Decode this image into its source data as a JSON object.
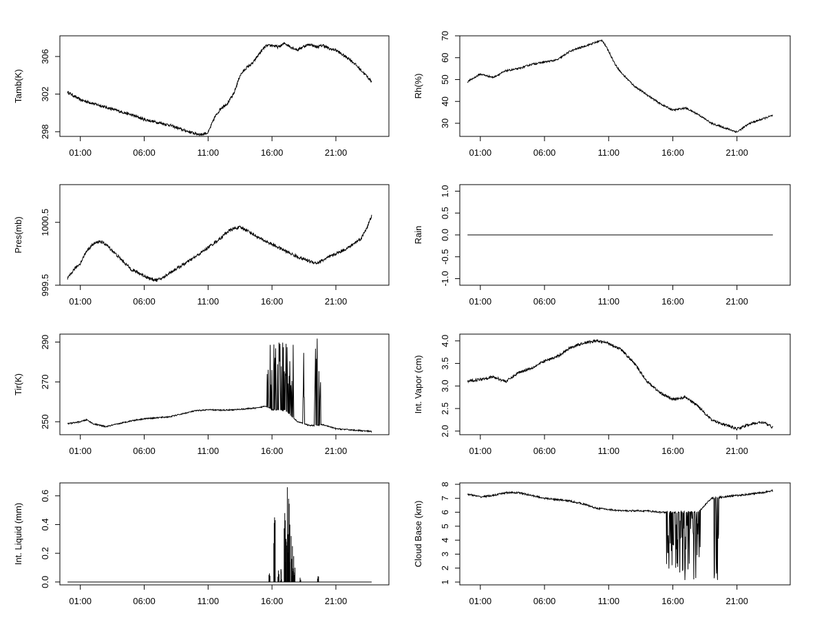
{
  "x_ticks": [
    "01:00",
    "06:00",
    "11:00",
    "16:00",
    "21:00"
  ],
  "chart_data": [
    {
      "type": "line",
      "ylabel": "Tamb(K)",
      "yticks": [
        "298",
        "302",
        "306"
      ],
      "ylim": [
        297.5,
        308.2
      ],
      "x": [
        0,
        1,
        2,
        3,
        4,
        5,
        6,
        7,
        8,
        9,
        9.5,
        10,
        10.5,
        11,
        11.5,
        12,
        12.5,
        13,
        13.5,
        14,
        14.5,
        15,
        15.5,
        16,
        16.5,
        17,
        17.5,
        18,
        18.5,
        19,
        19.5,
        20,
        20.5,
        21,
        21.5,
        22,
        22.5,
        23,
        23.5,
        24
      ],
      "values": [
        302.2,
        301.4,
        301.0,
        300.6,
        300.2,
        299.8,
        299.3,
        299.0,
        298.7,
        298.2,
        298.0,
        297.8,
        297.7,
        297.9,
        299.5,
        300.5,
        301.0,
        302.0,
        304.0,
        304.8,
        305.3,
        306.3,
        307.1,
        307.2,
        307.0,
        307.4,
        307.0,
        306.7,
        307.1,
        307.3,
        307.0,
        307.2,
        306.8,
        306.7,
        306.2,
        305.8,
        305.2,
        304.5,
        303.8,
        303.0
      ],
      "noise": 0.15,
      "spikes": false
    },
    {
      "type": "line",
      "ylabel": "Rh(%)",
      "yticks": [
        "30",
        "40",
        "50",
        "60",
        "70"
      ],
      "ylim": [
        24,
        70
      ],
      "x": [
        0,
        1,
        2,
        3,
        4,
        5,
        6,
        7,
        8,
        9,
        10,
        10.5,
        11,
        11.5,
        12,
        13,
        14,
        15,
        16,
        17,
        18,
        19,
        20,
        20.5,
        21,
        22,
        23,
        24
      ],
      "values": [
        49,
        52.5,
        51,
        54,
        55,
        57,
        58,
        59,
        63,
        65,
        67,
        68,
        63,
        57,
        53,
        47,
        43,
        39,
        36,
        37,
        34,
        30,
        28,
        27,
        26,
        30,
        32,
        34
      ],
      "noise": 0.4,
      "spikes": false
    },
    {
      "type": "line",
      "ylabel": "Pres(mb)",
      "yticks": [
        "999.5",
        "1000.5"
      ],
      "ylim": [
        999.5,
        1001.1
      ],
      "x": [
        0,
        0.5,
        1,
        1.5,
        2,
        2.5,
        3,
        4,
        5,
        6,
        6.5,
        7,
        7.5,
        8,
        9,
        10,
        11,
        12,
        12.5,
        13,
        13.5,
        14,
        15,
        16,
        17,
        18,
        19,
        19.5,
        20,
        21,
        22,
        23,
        23.5,
        24
      ],
      "values": [
        999.6,
        999.75,
        999.85,
        1000.05,
        1000.15,
        1000.2,
        1000.15,
        999.95,
        999.75,
        999.65,
        999.6,
        999.58,
        999.62,
        999.7,
        999.82,
        999.95,
        1000.1,
        1000.25,
        1000.35,
        1000.4,
        1000.42,
        1000.38,
        1000.25,
        1000.15,
        1000.05,
        999.95,
        999.88,
        999.85,
        999.9,
        1000.0,
        1000.1,
        1000.25,
        1000.45,
        1000.7
      ],
      "noise": 0.025,
      "spikes": false
    },
    {
      "type": "line",
      "ylabel": "Rain",
      "yticks": [
        "-1.0",
        "-0.5",
        "0.0",
        "0.5",
        "1.0"
      ],
      "ylim": [
        -1.15,
        1.15
      ],
      "x": [
        0,
        24
      ],
      "values": [
        0,
        0
      ],
      "noise": 0,
      "spikes": false
    },
    {
      "type": "line",
      "ylabel": "Tir(K)",
      "yticks": [
        "250",
        "270",
        "290"
      ],
      "ylim": [
        243.5,
        294
      ],
      "x": [
        0,
        1,
        1.5,
        2,
        3,
        4,
        5,
        6,
        7,
        8,
        9,
        10,
        11,
        12,
        13,
        14,
        15,
        15.5,
        16,
        17,
        18,
        19,
        20,
        21,
        22,
        23,
        24
      ],
      "values": [
        249,
        250,
        251,
        249,
        247.5,
        249,
        250.5,
        251.5,
        252,
        252.5,
        254,
        255.5,
        256,
        255.8,
        256,
        256.5,
        257,
        258,
        256,
        256,
        250,
        248,
        248.5,
        246.5,
        246,
        245.5,
        245
      ],
      "noise": 0.3,
      "spikes": true
    },
    {
      "type": "line",
      "ylabel": "Int. Vapor (cm)",
      "yticks": [
        "2.0",
        "2.5",
        "3.0",
        "3.5",
        "4.0"
      ],
      "ylim": [
        1.92,
        4.15
      ],
      "x": [
        0,
        1,
        2,
        3,
        4,
        5,
        6,
        7,
        8,
        9,
        10,
        11,
        12,
        13,
        14,
        15,
        16,
        17,
        18,
        19,
        20,
        21,
        22,
        23,
        24
      ],
      "values": [
        3.1,
        3.15,
        3.2,
        3.1,
        3.3,
        3.4,
        3.55,
        3.65,
        3.85,
        3.95,
        4.0,
        3.95,
        3.8,
        3.5,
        3.1,
        2.85,
        2.7,
        2.75,
        2.55,
        2.25,
        2.15,
        2.05,
        2.15,
        2.2,
        2.05
      ],
      "noise": 0.03,
      "spikes": false
    },
    {
      "type": "bar",
      "ylabel": "Int. Liquid (mm)",
      "yticks": [
        "0.0",
        "0.2",
        "0.4",
        "0.6"
      ],
      "ylim": [
        -0.02,
        0.69
      ],
      "x": [
        0,
        24
      ],
      "values": [
        0,
        0
      ],
      "spikes_x": [
        15.8,
        16.2,
        16.5,
        16.7,
        17.0,
        17.1,
        17.2,
        17.3,
        17.4,
        17.5,
        17.6,
        17.7,
        17.8,
        18.2,
        19.6
      ],
      "spikes_y": [
        0.06,
        0.45,
        0.08,
        0.09,
        0.48,
        0.3,
        0.66,
        0.58,
        0.4,
        0.32,
        0.25,
        0.18,
        0.1,
        0.03,
        0.04
      ]
    },
    {
      "type": "line",
      "ylabel": "Cloud Base (km)",
      "yticks": [
        "1",
        "2",
        "3",
        "4",
        "5",
        "6",
        "7",
        "8"
      ],
      "ylim": [
        0.8,
        8.1
      ],
      "x": [
        0,
        1,
        2,
        3,
        4,
        5,
        6,
        7,
        8,
        9,
        10,
        11,
        12,
        13,
        14,
        15,
        16,
        17,
        18,
        19,
        20,
        21,
        22,
        23,
        24
      ],
      "values": [
        7.3,
        7.1,
        7.2,
        7.4,
        7.4,
        7.2,
        7.0,
        6.9,
        6.8,
        6.6,
        6.3,
        6.2,
        6.1,
        6.1,
        6.1,
        6.0,
        6.0,
        6.0,
        6.0,
        7.0,
        7.1,
        7.2,
        7.3,
        7.4,
        7.6
      ],
      "noise": 0.06,
      "spikes": true
    }
  ]
}
